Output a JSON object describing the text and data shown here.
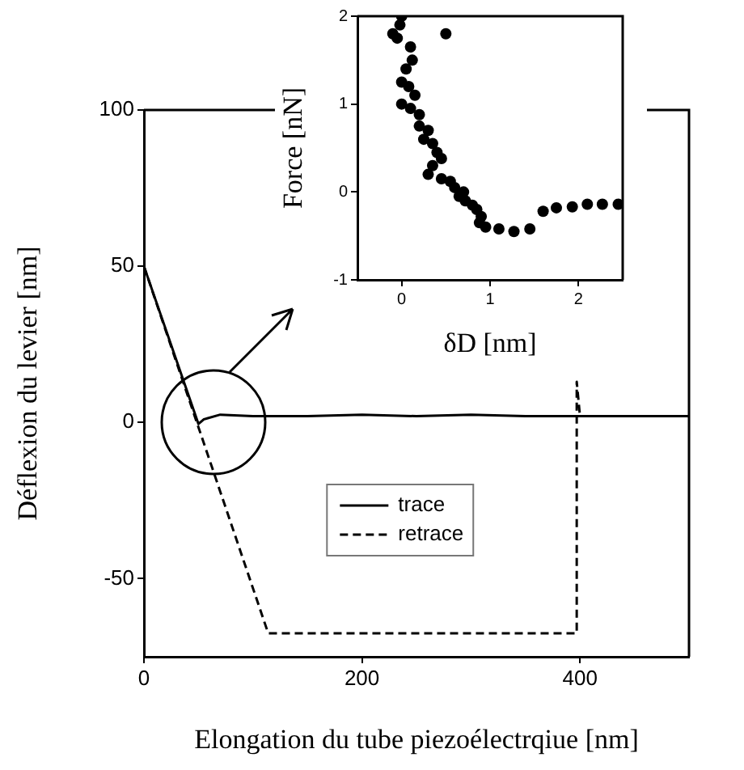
{
  "chart_data": [
    {
      "type": "line",
      "xlabel": "Elongation du tube piezoélectrqiue [nm]",
      "ylabel": "Déflexion du levier [nm]",
      "xlim": [
        0,
        500
      ],
      "ylim": [
        -75,
        100
      ],
      "xticks": [
        0,
        200,
        400
      ],
      "yticks": [
        -50,
        0,
        50,
        100
      ],
      "legend": "bottom",
      "series": [
        {
          "name": "trace",
          "color": "#000000",
          "line_style": "solid",
          "x": [
            0,
            50,
            55,
            70,
            100,
            150,
            200,
            250,
            300,
            350,
            397,
            400,
            450,
            500
          ],
          "values": [
            50,
            -0.5,
            1,
            2.5,
            2,
            2,
            2.5,
            2,
            2.5,
            2,
            2,
            2,
            2,
            2
          ]
        },
        {
          "name": "retrace",
          "color": "#000000",
          "line_style": "dashed",
          "x": [
            0,
            114,
            397,
            397,
            400,
            500
          ],
          "values": [
            50,
            -67.5,
            -67.5,
            13,
            2,
            2
          ]
        }
      ]
    },
    {
      "type": "scatter",
      "xlabel": "δD [nm]",
      "ylabel": "Force [nN]",
      "xlim": [
        -0.5,
        2.5
      ],
      "ylim": [
        -1,
        2
      ],
      "xticks": [
        0,
        1,
        2
      ],
      "yticks": [
        -1,
        0,
        1,
        2
      ],
      "marker": "circle",
      "series": [
        {
          "color": "#000000",
          "x": [
            0,
            -0.02,
            -0.1,
            -0.05,
            0.5,
            0.1,
            0.12,
            0.05,
            0,
            0.08,
            0.15,
            0,
            0.1,
            0.2,
            0.2,
            0.3,
            0.25,
            0.35,
            0.4,
            0.45,
            0.35,
            0.3,
            0.45,
            0.55,
            0.6,
            0.7,
            0.65,
            0.72,
            0.8,
            0.85,
            0.9,
            0.88,
            0.95,
            1.1,
            1.27,
            1.45,
            1.6,
            1.75,
            1.93,
            2.1,
            2.27,
            2.45
          ],
          "values": [
            2,
            1.9,
            1.8,
            1.75,
            1.8,
            1.65,
            1.5,
            1.4,
            1.25,
            1.2,
            1.1,
            1,
            0.95,
            0.88,
            0.75,
            0.7,
            0.6,
            0.55,
            0.45,
            0.38,
            0.3,
            0.2,
            0.15,
            0.12,
            0.05,
            0,
            -0.05,
            -0.1,
            -0.15,
            -0.2,
            -0.28,
            -0.35,
            -0.4,
            -0.42,
            -0.45,
            -0.42,
            -0.22,
            -0.18,
            -0.17,
            -0.14,
            -0.14,
            -0.14
          ]
        }
      ]
    }
  ]
}
